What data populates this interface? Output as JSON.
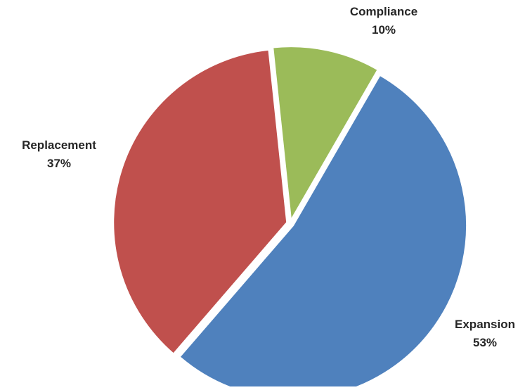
{
  "chart_data": {
    "type": "pie",
    "title": "",
    "slices": [
      {
        "label": "Expansion",
        "value": 53,
        "value_label": "53%",
        "color": "#4F81BD"
      },
      {
        "label": "Replacement",
        "value": 37,
        "value_label": "37%",
        "color": "#C0504D"
      },
      {
        "label": "Compliance",
        "value": 10,
        "value_label": "10%",
        "color": "#9BBB59"
      }
    ],
    "legend": "none",
    "data_labels": "outside, category name and percentage",
    "exploded": true
  }
}
